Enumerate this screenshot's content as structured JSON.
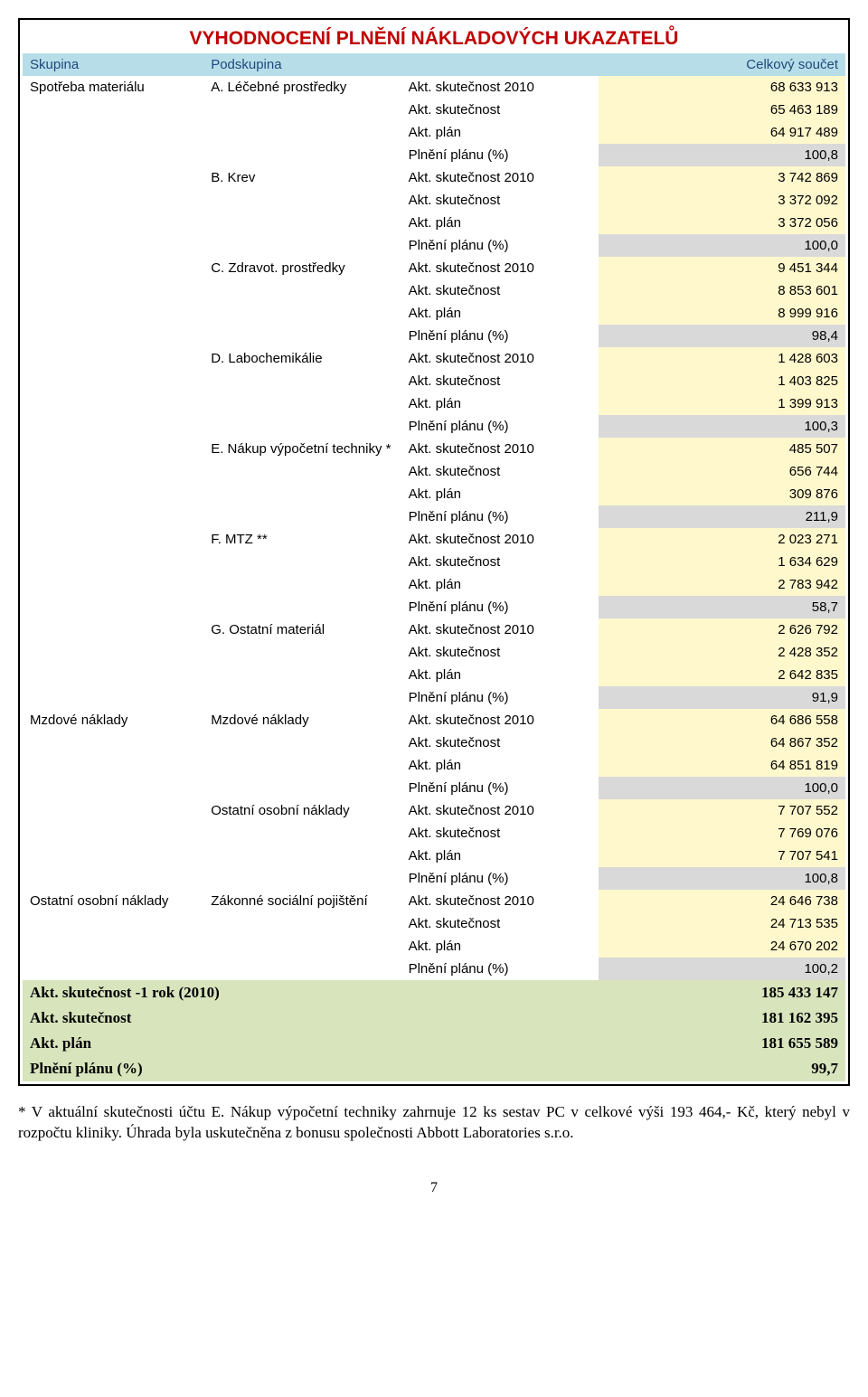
{
  "title": "VYHODNOCENÍ PLNĚNÍ NÁKLADOVÝCH UKAZATELŮ",
  "header": {
    "c1": "Skupina",
    "c2": "Podskupina",
    "c4": "Celkový součet"
  },
  "metric_labels": {
    "m1": "Akt. skutečnost 2010",
    "m2": "Akt. skutečnost",
    "m3": "Akt. plán",
    "m4": "Plnění plánu (%)"
  },
  "groups": [
    {
      "group": "Spotřeba materiálu",
      "subs": [
        {
          "name": "A. Léčebné prostředky",
          "v": [
            "68 633 913",
            "65 463 189",
            "64 917 489",
            "100,8"
          ]
        },
        {
          "name": "B. Krev",
          "v": [
            "3 742 869",
            "3 372 092",
            "3 372 056",
            "100,0"
          ]
        },
        {
          "name": "C. Zdravot. prostředky",
          "v": [
            "9 451 344",
            "8 853 601",
            "8 999 916",
            "98,4"
          ]
        },
        {
          "name": "D. Labochemikálie",
          "v": [
            "1 428 603",
            "1 403 825",
            "1 399 913",
            "100,3"
          ]
        },
        {
          "name": "E. Nákup výpočetní techniky *",
          "v": [
            "485 507",
            "656 744",
            "309 876",
            "211,9"
          ]
        },
        {
          "name": "F. MTZ **",
          "v": [
            "2 023 271",
            "1 634 629",
            "2 783 942",
            "58,7"
          ]
        },
        {
          "name": "G. Ostatní materiál",
          "v": [
            "2 626 792",
            "2 428 352",
            "2 642 835",
            "91,9"
          ]
        }
      ]
    },
    {
      "group": "Mzdové náklady",
      "subs": [
        {
          "name": "Mzdové náklady",
          "v": [
            "64 686 558",
            "64 867 352",
            "64 851 819",
            "100,0"
          ]
        },
        {
          "name": "Ostatní osobní náklady",
          "v": [
            "7 707 552",
            "7 769 076",
            "7 707 541",
            "100,8"
          ]
        }
      ]
    },
    {
      "group": "Ostatní osobní náklady",
      "subs": [
        {
          "name": "Zákonné sociální pojištění",
          "v": [
            "24 646 738",
            "24 713 535",
            "24 670 202",
            "100,2"
          ]
        }
      ]
    }
  ],
  "summary": [
    {
      "label": "Akt. skutečnost -1 rok (2010)",
      "val": "185 433 147"
    },
    {
      "label": "Akt. skutečnost",
      "val": "181 162 395"
    },
    {
      "label": "Akt. plán",
      "val": "181 655 589"
    },
    {
      "label": "Plnění plánu (%)",
      "val": "99,7"
    }
  ],
  "footnote": "* V aktuální skutečnosti účtu E. Nákup výpočetní techniky zahrnuje 12 ks sestav PC v celkové výši 193 464,- Kč, který nebyl v rozpočtu kliniky. Úhrada byla uskutečněna z bonusu společnosti Abbott Laboratories s.r.o.",
  "pagenum": "7",
  "colors": {
    "title": "#c00000",
    "header_bg": "#b7dee8",
    "header_fg": "#1f497d",
    "yellow": "#fff8cc",
    "grey": "#d9d9d9",
    "green": "#d8e4bc",
    "border": "#000000"
  }
}
